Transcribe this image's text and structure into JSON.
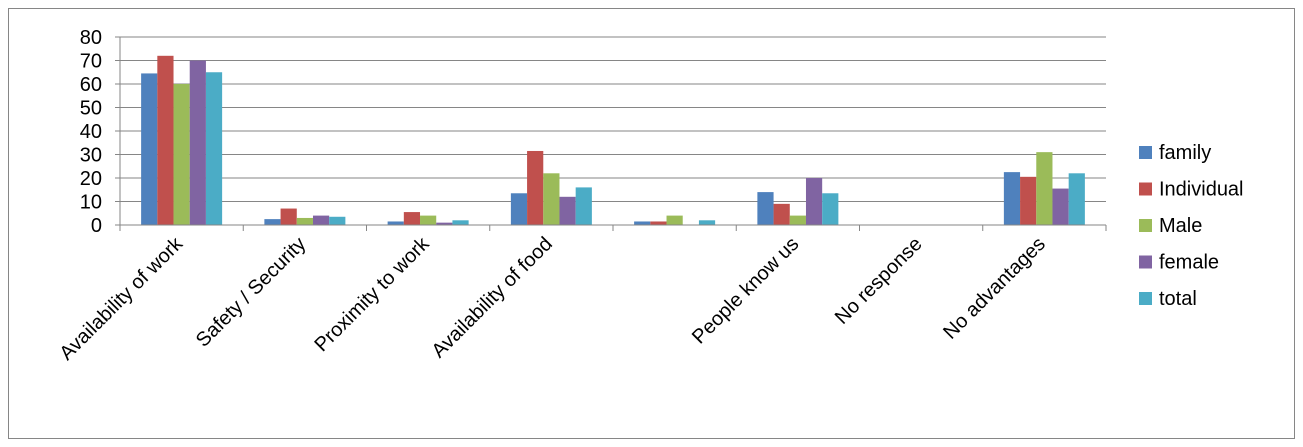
{
  "chart_data": {
    "type": "bar",
    "title": "",
    "xlabel": "",
    "ylabel": "",
    "ylim": [
      0,
      80
    ],
    "yticks": [
      0,
      10,
      20,
      30,
      40,
      50,
      60,
      70,
      80
    ],
    "grid": true,
    "legend_position": "right",
    "categories": [
      "Availability of work",
      "Safety / Security",
      "Proximity to work",
      "Availability of food",
      "",
      "People know us",
      "No response",
      "No advantages"
    ],
    "series": [
      {
        "name": "family",
        "color": "#4F81BD",
        "values": [
          64.5,
          2.5,
          1.5,
          13.5,
          1.5,
          14,
          0,
          22.5
        ]
      },
      {
        "name": "Individual",
        "color": "#C0504D",
        "values": [
          72,
          7,
          5.5,
          31.5,
          1.5,
          9,
          0,
          20.5
        ]
      },
      {
        "name": "Male",
        "color": "#9BBB59",
        "values": [
          60,
          3,
          4,
          22,
          4,
          4,
          0,
          31
        ]
      },
      {
        "name": "female",
        "color": "#8064A2",
        "values": [
          70,
          4,
          1,
          12,
          0,
          20,
          0,
          15.5
        ]
      },
      {
        "name": "total",
        "color": "#4BACC6",
        "values": [
          65,
          3.5,
          2,
          16,
          2,
          13.5,
          0,
          22
        ]
      }
    ]
  }
}
